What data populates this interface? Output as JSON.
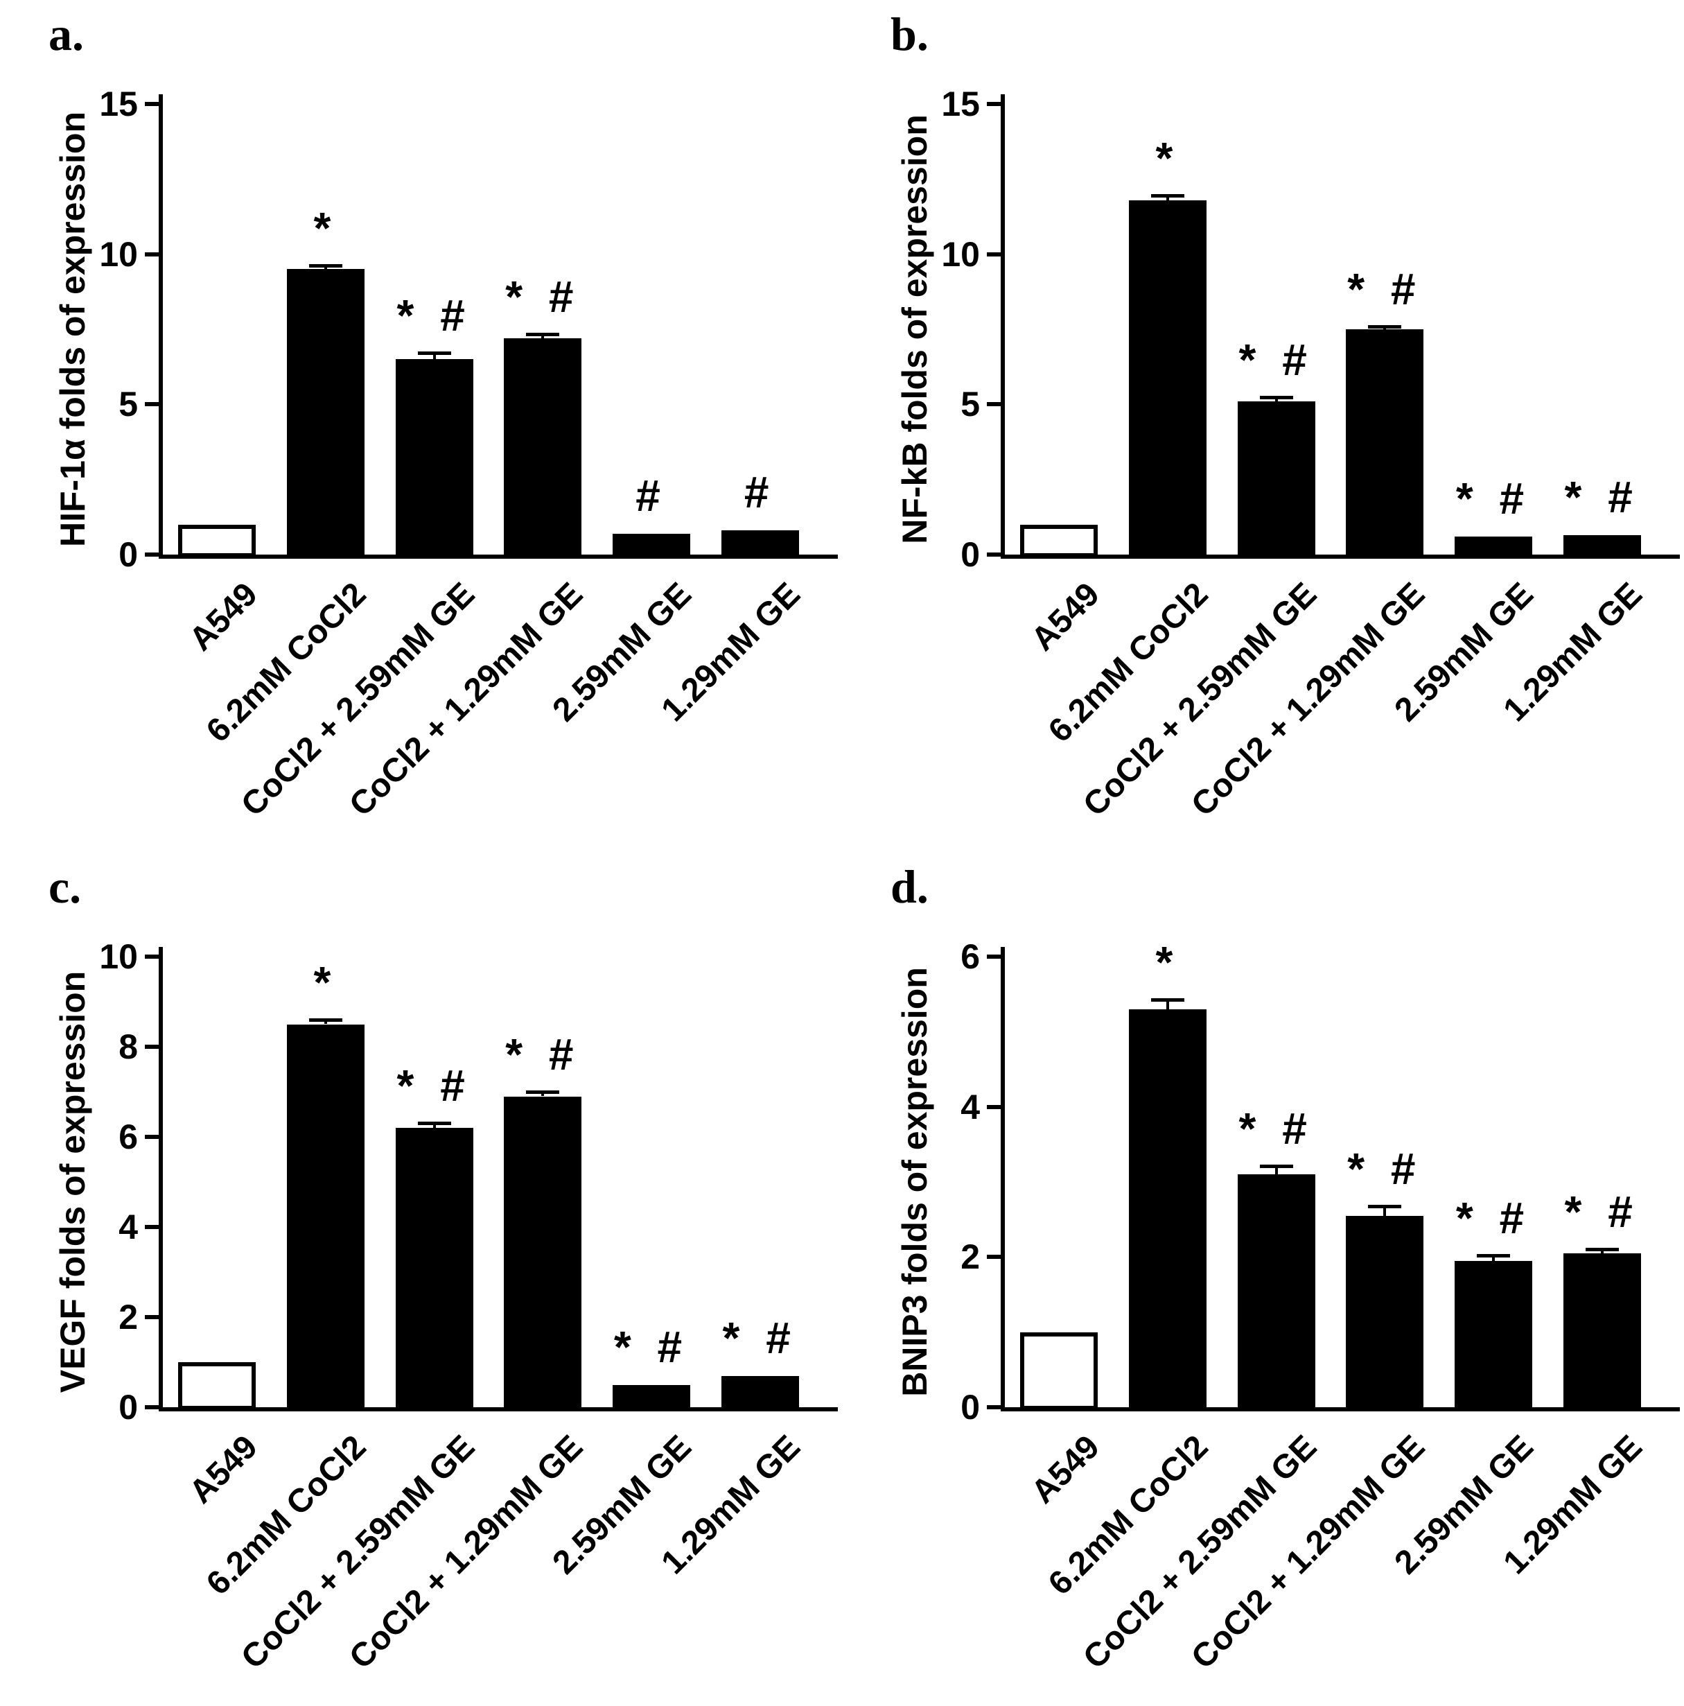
{
  "colors": {
    "bar_fill": "#000000",
    "control_bar_fill": "#ffffff",
    "axis": "#000000",
    "background": "#ffffff"
  },
  "chart_data": [
    {
      "type": "bar",
      "panel_label": "a.",
      "title": "",
      "xlabel": "",
      "ylabel": "HIF-1α folds of expression",
      "ylim": [
        0,
        15
      ],
      "yticks": [
        0,
        5,
        10,
        15
      ],
      "grid": false,
      "legend": "none",
      "categories": [
        "A549",
        "6.2mM CoCl2",
        "CoCl2 + 2.59mM GE",
        "CoCl2 + 1.29mM GE",
        "2.59mM GE",
        "1.29mM GE"
      ],
      "values": [
        1.0,
        9.5,
        6.5,
        7.2,
        0.7,
        0.8
      ],
      "errors": [
        0,
        0.1,
        0.2,
        0.12,
        0,
        0
      ],
      "significance": [
        "",
        "*",
        "* #",
        "* #",
        "#",
        "#"
      ],
      "bar_fills": [
        "#ffffff",
        "#000000",
        "#000000",
        "#000000",
        "#000000",
        "#000000"
      ]
    },
    {
      "type": "bar",
      "panel_label": "b.",
      "title": "",
      "xlabel": "",
      "ylabel": "NF-kB folds of expression",
      "ylim": [
        0,
        15
      ],
      "yticks": [
        0,
        5,
        10,
        15
      ],
      "grid": false,
      "legend": "none",
      "categories": [
        "A549",
        "6.2mM CoCl2",
        "CoCl2 + 2.59mM GE",
        "CoCl2 + 1.29mM GE",
        "2.59mM GE",
        "1.29mM GE"
      ],
      "values": [
        1.0,
        11.8,
        5.1,
        7.5,
        0.6,
        0.65
      ],
      "errors": [
        0,
        0.12,
        0.12,
        0.08,
        0,
        0
      ],
      "significance": [
        "",
        "*",
        "* #",
        "* #",
        "* #",
        "* #"
      ],
      "bar_fills": [
        "#ffffff",
        "#000000",
        "#000000",
        "#000000",
        "#000000",
        "#000000"
      ]
    },
    {
      "type": "bar",
      "panel_label": "c.",
      "title": "",
      "xlabel": "",
      "ylabel": "VEGF folds of expression",
      "ylim": [
        0,
        10
      ],
      "yticks": [
        0,
        2,
        4,
        6,
        8,
        10
      ],
      "grid": false,
      "legend": "none",
      "categories": [
        "A549",
        "6.2mM CoCl2",
        "CoCl2 + 2.59mM GE",
        "CoCl2 + 1.29mM GE",
        "2.59mM GE",
        "1.29mM GE"
      ],
      "values": [
        1.0,
        8.5,
        6.2,
        6.9,
        0.5,
        0.7
      ],
      "errors": [
        0,
        0.08,
        0.1,
        0.08,
        0,
        0
      ],
      "significance": [
        "",
        "*",
        "* #",
        "* #",
        "* #",
        "* #"
      ],
      "bar_fills": [
        "#ffffff",
        "#000000",
        "#000000",
        "#000000",
        "#000000",
        "#000000"
      ]
    },
    {
      "type": "bar",
      "panel_label": "d.",
      "title": "",
      "xlabel": "",
      "ylabel": "BNIP3 folds of expression",
      "ylim": [
        0,
        6
      ],
      "yticks": [
        0,
        2,
        4,
        6
      ],
      "grid": false,
      "legend": "none",
      "categories": [
        "A549",
        "6.2mM CoCl2",
        "CoCl2 + 2.59mM GE",
        "CoCl2 + 1.29mM GE",
        "2.59mM GE",
        "1.29mM GE"
      ],
      "values": [
        1.0,
        5.3,
        3.1,
        2.55,
        1.95,
        2.05
      ],
      "errors": [
        0,
        0.12,
        0.1,
        0.12,
        0.06,
        0.05
      ],
      "significance": [
        "",
        "*",
        "* #",
        "* #",
        "* #",
        "* #"
      ],
      "bar_fills": [
        "#ffffff",
        "#000000",
        "#000000",
        "#000000",
        "#000000",
        "#000000"
      ]
    }
  ]
}
